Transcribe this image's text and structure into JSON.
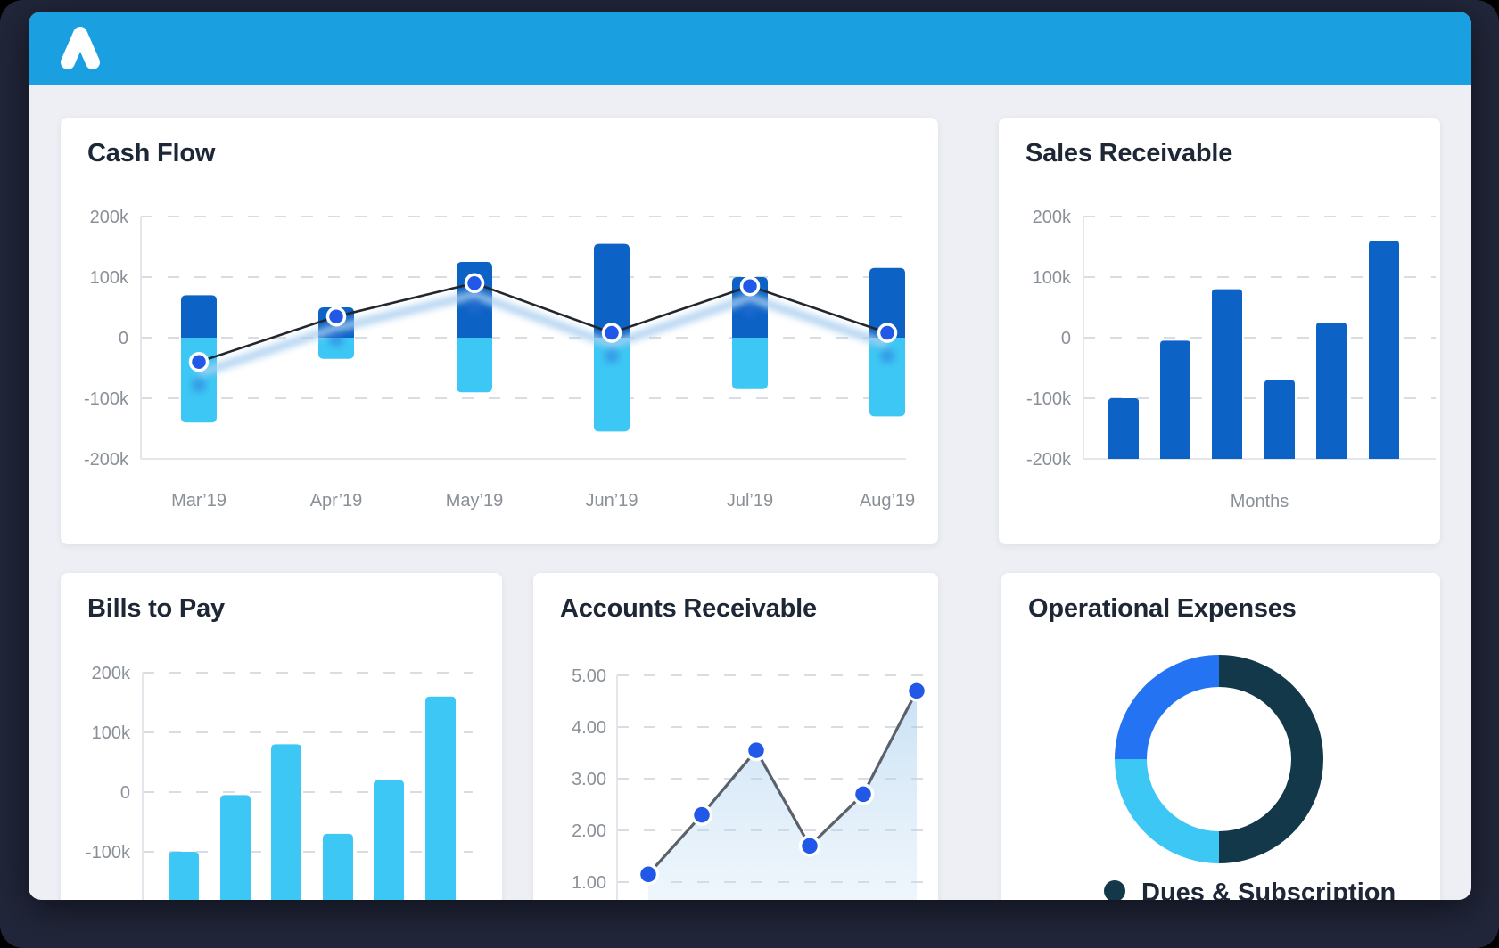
{
  "window": {
    "header": {
      "logo_icon": "mountain-peak-logo"
    }
  },
  "colors": {
    "header_blue": "#1a9fe0",
    "dark_bar_blue": "#0d63c5",
    "cyan": "#3dc7f4",
    "marker_blue": "#2158e8",
    "donut_navy": "#12384a",
    "donut_blue": "#2473f2",
    "cashflow_line": "#23262d",
    "accounts_line": "#5a616b",
    "tick_gray": "#8a9097",
    "title_dark": "#1d2736",
    "grid_gray": "#d9dce1",
    "axis_gray": "#e3e6eb",
    "body_bg": "#edeff5",
    "frame_bg": "#21263a",
    "card_bg": "#ffffff"
  },
  "chart_data": [
    {
      "id": "cash-flow",
      "type": "bar",
      "subtype": "stacked-bar-with-line-combo",
      "title": "Cash Flow",
      "categories": [
        "Mar’19",
        "Apr’19",
        "May’19",
        "Jun’19",
        "Jul’19",
        "Aug’19"
      ],
      "series": [
        {
          "name": "positive-bars",
          "type": "bar",
          "color": "#0d63c5",
          "values": [
            70000,
            50000,
            125000,
            155000,
            100000,
            115000
          ]
        },
        {
          "name": "negative-bars",
          "type": "bar",
          "color": "#3dc7f4",
          "values": [
            -140000,
            -35000,
            -90000,
            -155000,
            -85000,
            -130000
          ]
        },
        {
          "name": "net-line",
          "type": "line",
          "color": "#23262d",
          "marker_color": "#2158e8",
          "values": [
            -40000,
            35000,
            90000,
            8000,
            85000,
            8000
          ]
        }
      ],
      "ylim": [
        -200000,
        200000
      ],
      "yticks": [
        "200k",
        "100k",
        "0",
        "-100k",
        "-200k"
      ],
      "ytick_values": [
        200000,
        100000,
        0,
        -100000,
        -200000
      ],
      "grid": "dashed-horizontal",
      "legend_position": "none"
    },
    {
      "id": "sales-receivable",
      "type": "bar",
      "title": "Sales Receivable",
      "xlabel": "Months",
      "categories": [
        "",
        "",
        "",
        "",
        "",
        ""
      ],
      "values": [
        -100000,
        -5000,
        80000,
        -70000,
        25000,
        160000
      ],
      "bar_color": "#0d63c5",
      "baseline": -200000,
      "ylim": [
        -200000,
        200000
      ],
      "yticks": [
        "200k",
        "100k",
        "0",
        "-100k",
        "-200k"
      ],
      "ytick_values": [
        200000,
        100000,
        0,
        -100000,
        -200000
      ],
      "grid": "dashed-horizontal",
      "legend_position": "none"
    },
    {
      "id": "bills-to-pay",
      "type": "bar",
      "title": "Bills to Pay",
      "values": [
        -100000,
        -5000,
        80000,
        -70000,
        20000,
        160000
      ],
      "bar_color": "#3dc7f4",
      "baseline": -200000,
      "ylim": [
        -200000,
        200000
      ],
      "yticks": [
        "200k",
        "100k",
        "0",
        "-100k"
      ],
      "ytick_values": [
        200000,
        100000,
        0,
        -100000
      ],
      "grid": "dashed-horizontal",
      "legend_position": "none",
      "note": "bottom of chart clipped by window edge"
    },
    {
      "id": "accounts-receivable",
      "type": "line",
      "title": "Accounts Receivable",
      "values": [
        1.15,
        2.3,
        3.55,
        1.7,
        2.7,
        4.7
      ],
      "line_color": "#5a616b",
      "marker_color": "#2158e8",
      "area_fill": true,
      "yticks": [
        "5.00",
        "4.00",
        "3.00",
        "2.00",
        "1.00"
      ],
      "ytick_values": [
        5.0,
        4.0,
        3.0,
        2.0,
        1.0
      ],
      "grid": "dashed-horizontal",
      "legend_position": "none",
      "note": "bottom of chart clipped by window edge"
    },
    {
      "id": "operational-expenses",
      "type": "pie",
      "subtype": "donut",
      "title": "Operational Expenses",
      "slices": [
        {
          "value": 50,
          "color": "#12384a"
        },
        {
          "value": 25,
          "color": "#3dc7f4"
        },
        {
          "value": 25,
          "color": "#2473f2"
        }
      ],
      "start_angle_deg": 0,
      "direction": "clockwise",
      "legend": [
        {
          "label": "Dues & Subscription",
          "color": "#12384a"
        }
      ],
      "legend_position": "bottom"
    }
  ]
}
